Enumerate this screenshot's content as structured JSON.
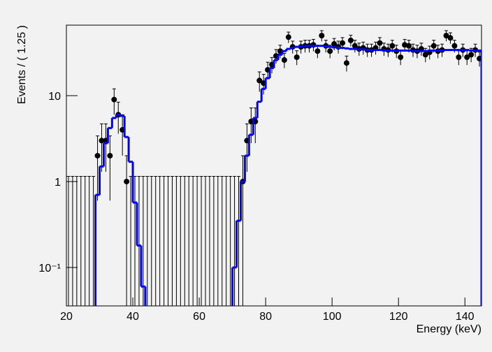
{
  "chart_data": {
    "type": "scatter",
    "xlabel": "Energy (keV)",
    "ylabel": "Events / ( 1.25 )",
    "log_y": true,
    "xlim": [
      20,
      145
    ],
    "xticks": [
      20,
      40,
      60,
      80,
      100,
      120,
      140
    ],
    "ylim": [
      0.0357,
      66.2
    ],
    "yticks": [
      {
        "value": 0.1,
        "label": "10⁻¹"
      },
      1,
      10
    ],
    "x": [
      20.625,
      21.875,
      23.125,
      24.375,
      25.625,
      26.875,
      28.125,
      29.375,
      30.625,
      31.875,
      33.125,
      34.375,
      35.625,
      36.875,
      38.125,
      39.375,
      40.625,
      41.875,
      43.125,
      44.375,
      45.625,
      46.875,
      48.125,
      49.375,
      50.625,
      51.875,
      53.125,
      54.375,
      55.625,
      56.875,
      58.125,
      59.375,
      60.625,
      61.875,
      63.125,
      64.375,
      65.625,
      66.875,
      68.125,
      69.375,
      70.625,
      71.875,
      73.125,
      74.375,
      75.625,
      76.875,
      78.125,
      79.375,
      80.625,
      81.875,
      83.125,
      84.375,
      85.625,
      86.875,
      88.125,
      89.375,
      90.625,
      91.875,
      93.125,
      94.375,
      95.625,
      96.875,
      98.125,
      99.375,
      100.625,
      101.875,
      103.125,
      104.375,
      105.625,
      106.875,
      108.125,
      109.375,
      110.625,
      111.875,
      113.125,
      114.375,
      115.625,
      116.875,
      118.125,
      119.375,
      120.625,
      121.875,
      123.125,
      124.375,
      125.625,
      126.875,
      128.125,
      129.375,
      130.625,
      131.875,
      133.125,
      134.375,
      135.625,
      136.875,
      138.125,
      139.375,
      140.625,
      141.875,
      143.125,
      144.375
    ],
    "series": [
      {
        "color": "#000000",
        "style": "points",
        "values": [
          0,
          0,
          0,
          0,
          0,
          0,
          0,
          2,
          3,
          3,
          2,
          9,
          6,
          4,
          1,
          0,
          0,
          0,
          0,
          0,
          0,
          0,
          0,
          0,
          0,
          0,
          0,
          0,
          0,
          0,
          0,
          0,
          0,
          0,
          0,
          0,
          0,
          0,
          0,
          0,
          0,
          0,
          1,
          3,
          5,
          5,
          15,
          14,
          20,
          23,
          29,
          33,
          26,
          48,
          37,
          28,
          37,
          38,
          38,
          39,
          33,
          50,
          38,
          33,
          40,
          37,
          41,
          24,
          44,
          38,
          35,
          36,
          34,
          34,
          36,
          41,
          35,
          34,
          38,
          33,
          28,
          39,
          38,
          34,
          33,
          35,
          30,
          32,
          38,
          33,
          34,
          50,
          47,
          38,
          28,
          34,
          28,
          30,
          34,
          27
        ],
        "yerr": [
          1.15,
          1.15,
          1.15,
          1.15,
          1.15,
          1.15,
          1.15,
          1.4,
          1.7,
          1.7,
          1.4,
          3,
          2.4,
          2,
          1,
          1.15,
          1.15,
          1.15,
          1.15,
          1.15,
          1.15,
          1.15,
          1.15,
          1.15,
          1.15,
          1.15,
          1.15,
          1.15,
          1.15,
          1.15,
          1.15,
          1.15,
          1.15,
          1.15,
          1.15,
          1.15,
          1.15,
          1.15,
          1.15,
          1.15,
          1.15,
          1.15,
          1,
          1.7,
          2.2,
          2.2,
          3.9,
          3.7,
          4.5,
          4.8,
          5.4,
          5.7,
          5.1,
          6.9,
          6.1,
          5.3,
          6.1,
          6.2,
          6.2,
          6.2,
          5.7,
          7.1,
          6.2,
          5.7,
          6.3,
          6.1,
          6.4,
          4.9,
          6.6,
          6.2,
          5.9,
          6,
          5.8,
          5.8,
          6,
          6.4,
          5.9,
          5.8,
          6.2,
          5.7,
          5.3,
          6.2,
          6.2,
          5.8,
          5.7,
          5.9,
          5.5,
          5.7,
          6.2,
          5.7,
          5.8,
          7.1,
          6.9,
          6.2,
          5.3,
          5.8,
          5.3,
          5.5,
          5.8,
          5.2
        ]
      },
      {
        "color": "#0000ff",
        "style": "step",
        "values": [
          null,
          null,
          null,
          null,
          null,
          null,
          null,
          0.7,
          1.5,
          2.8,
          4.2,
          5.5,
          6,
          5.8,
          3.3,
          1.7,
          0.57,
          0.18,
          0.06,
          null,
          null,
          null,
          null,
          null,
          null,
          null,
          null,
          null,
          null,
          null,
          null,
          null,
          null,
          null,
          null,
          null,
          null,
          null,
          null,
          null,
          0.1,
          0.35,
          1,
          2,
          3.5,
          5.5,
          8.5,
          12,
          16,
          21,
          26,
          30,
          33,
          35,
          36,
          37,
          37.5,
          38,
          38,
          38,
          38,
          38,
          37.5,
          37,
          36.5,
          36,
          36,
          35.5,
          35,
          35,
          34.5,
          34.5,
          34,
          34,
          34,
          34,
          33.5,
          33.5,
          33.5,
          33.5,
          33.5,
          33.5,
          33.5,
          33,
          33,
          33,
          33,
          33.5,
          33.5,
          33.5,
          33.5,
          34,
          34,
          34,
          34,
          34,
          34,
          33.5,
          33.5,
          33.5
        ]
      }
    ]
  }
}
